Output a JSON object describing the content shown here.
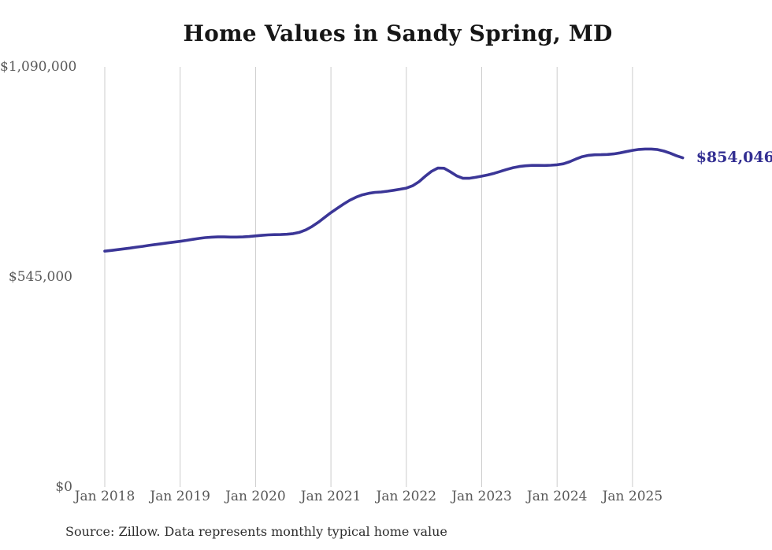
{
  "chart": {
    "title": "Home Values in Sandy Spring, MD",
    "latest_value_label": "$854,046",
    "source_note": "Source: Zillow. Data represents monthly typical home value",
    "line_color": "#3b3697",
    "label_color": "#332f92",
    "grid_color": "#cccccc"
  },
  "chart_data": {
    "type": "line",
    "title": "Home Values in Sandy Spring, MD",
    "xlabel": "",
    "ylabel": "",
    "ylim": [
      0,
      1090000
    ],
    "grid": "vertical-only",
    "legend": "none",
    "y_ticks": [
      {
        "label": "$0",
        "value": 0
      },
      {
        "label": "$545,000",
        "value": 545000
      },
      {
        "label": "$1,090,000",
        "value": 1090000
      }
    ],
    "x_ticks": [
      {
        "label": "Jan 2018",
        "month": 0
      },
      {
        "label": "Jan 2019",
        "month": 12
      },
      {
        "label": "Jan 2020",
        "month": 24
      },
      {
        "label": "Jan 2021",
        "month": 36
      },
      {
        "label": "Jan 2022",
        "month": 48
      },
      {
        "label": "Jan 2023",
        "month": 60
      },
      {
        "label": "Jan 2024",
        "month": 72
      },
      {
        "label": "Jan 2025",
        "month": 84
      }
    ],
    "x_start": "Jan 2018",
    "x_end": "Sep 2025",
    "x_frequency": "monthly",
    "latest_value": 854046,
    "series": [
      {
        "name": "Typical home value",
        "values": [
          612000,
          613800,
          615800,
          617800,
          620000,
          622300,
          624500,
          626800,
          629000,
          631200,
          633300,
          635400,
          637500,
          640000,
          642500,
          645000,
          647000,
          648200,
          648800,
          648800,
          648500,
          648400,
          648800,
          650000,
          651500,
          653000,
          654200,
          654800,
          655000,
          655800,
          657500,
          661000,
          667000,
          676000,
          687000,
          699500,
          712000,
          723000,
          734000,
          744000,
          752000,
          758000,
          762000,
          764500,
          765500,
          767500,
          770000,
          772500,
          775500,
          781500,
          792000,
          806000,
          819000,
          827500,
          827000,
          818000,
          807500,
          801000,
          801000,
          803500,
          806500,
          810000,
          814000,
          819000,
          824000,
          828500,
          831500,
          833500,
          834500,
          834500,
          834200,
          834800,
          836000,
          838500,
          844000,
          851000,
          857000,
          860500,
          862000,
          862200,
          862800,
          864200,
          866800,
          870200,
          873500,
          875800,
          877000,
          877000,
          875500,
          871500,
          866000,
          859500,
          854046
        ]
      }
    ]
  }
}
